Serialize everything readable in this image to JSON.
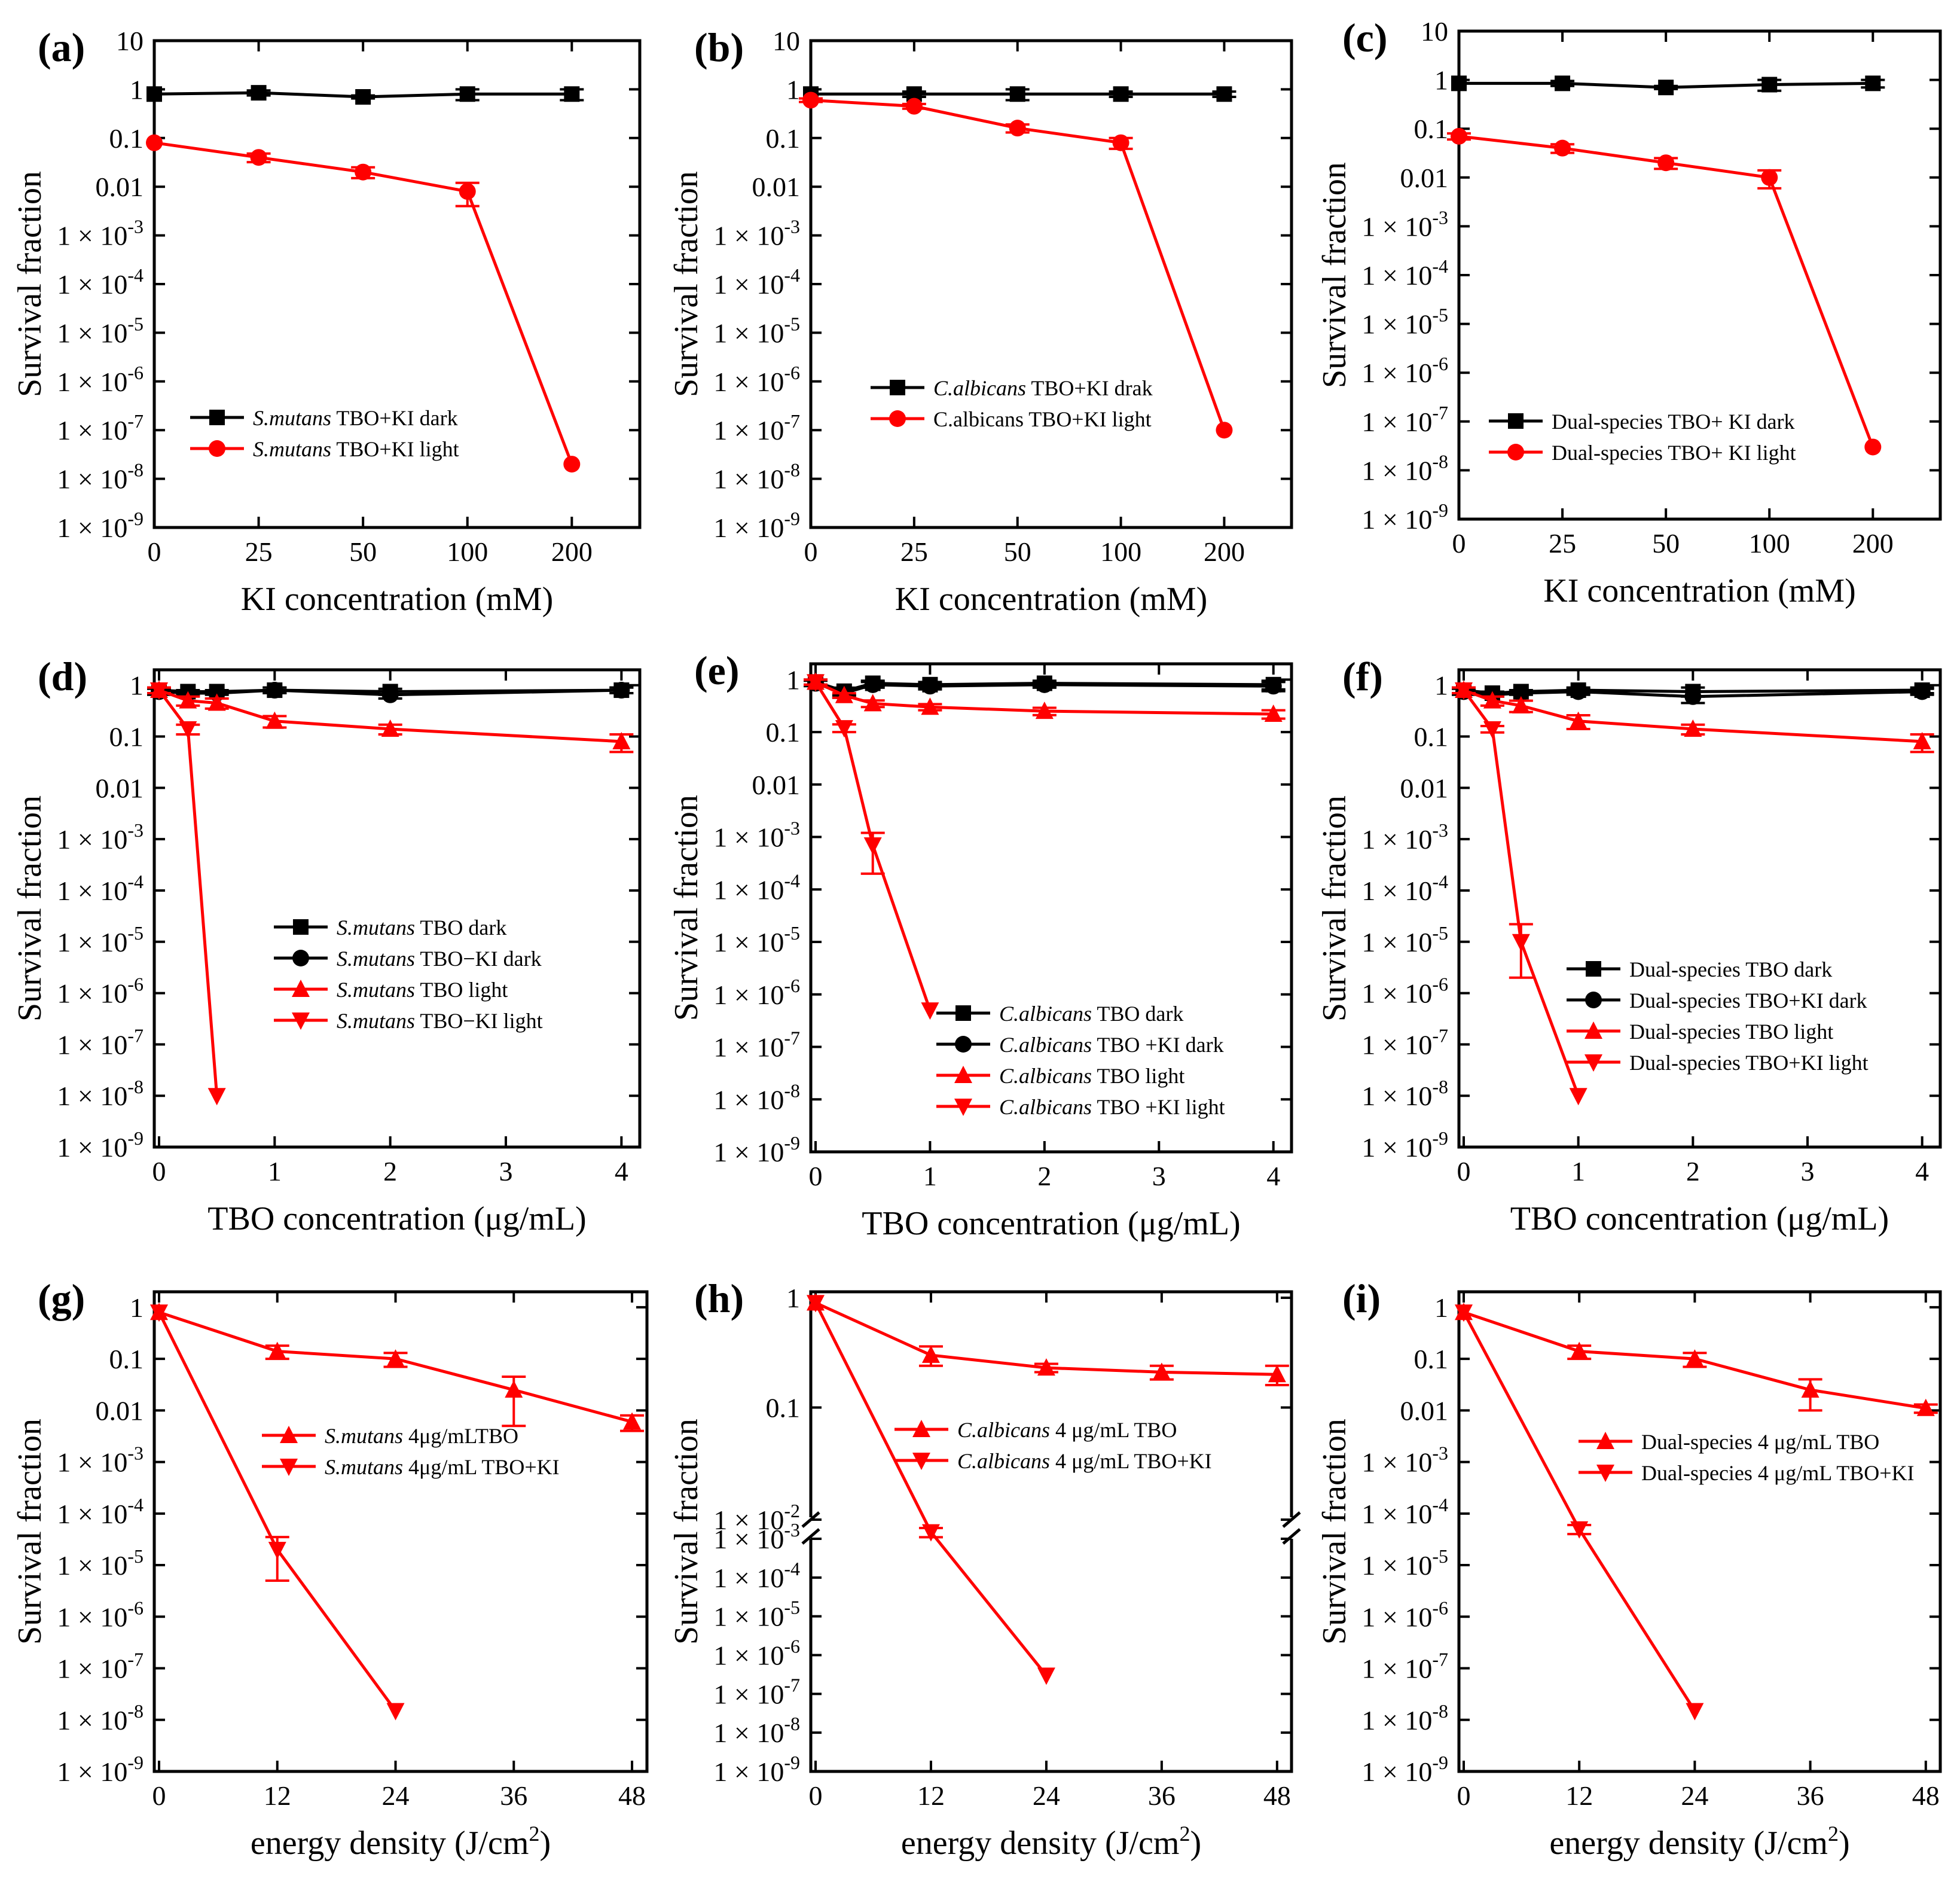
{
  "chart_data": [
    {
      "panel": "(a)",
      "type": "line",
      "xlabel": "KI concentration (mM)",
      "ylabel": "Survival fraction",
      "x_categories": [
        "0",
        "25",
        "50",
        "100",
        "200"
      ],
      "yscale": "log",
      "ylim": [
        1e-09,
        10
      ],
      "series": [
        {
          "name": "S.mutans TBO+KI dark",
          "name_italic": "S.mutans",
          "name_rest": " TBO+KI dark",
          "color": "#000000",
          "marker": "square",
          "x": [
            "0",
            "25",
            "50",
            "100",
            "200"
          ],
          "y": [
            0.8,
            0.85,
            0.7,
            0.8,
            0.8
          ],
          "err": [
            0,
            0.1,
            0.05,
            0.2,
            0.2
          ]
        },
        {
          "name": "S.mutans TBO+KI light",
          "name_italic": "S.mutans",
          "name_rest": " TBO+KI light",
          "color": "#ff0000",
          "marker": "circle",
          "x": [
            "0",
            "25",
            "50",
            "100",
            "200"
          ],
          "y": [
            0.08,
            0.04,
            0.02,
            0.008,
            2e-08
          ],
          "err": [
            0,
            0.008,
            0.005,
            0.004,
            0
          ]
        }
      ]
    },
    {
      "panel": "(b)",
      "type": "line",
      "xlabel": "KI concentration (mM)",
      "ylabel": "Survival fraction",
      "x_categories": [
        "0",
        "25",
        "50",
        "100",
        "200"
      ],
      "yscale": "log",
      "ylim": [
        1e-09,
        10
      ],
      "series": [
        {
          "name": "C.albicans TBO+KI drak",
          "name_italic": "C.albicans",
          "name_rest": " TBO+KI drak",
          "color": "#000000",
          "marker": "square",
          "x": [
            "0",
            "25",
            "50",
            "100",
            "200"
          ],
          "y": [
            0.8,
            0.8,
            0.8,
            0.8,
            0.8
          ],
          "err": [
            0,
            0.1,
            0.2,
            0.1,
            0.1
          ]
        },
        {
          "name": "C.albicans TBO+KI light",
          "name_italic": "",
          "name_rest": "C.albicans TBO+KI light",
          "color": "#ff0000",
          "marker": "circle",
          "x": [
            "0",
            "25",
            "50",
            "100",
            "200"
          ],
          "y": [
            0.6,
            0.45,
            0.16,
            0.08,
            1e-07
          ],
          "err": [
            0.05,
            0.05,
            0.03,
            0.02,
            0
          ]
        }
      ]
    },
    {
      "panel": "(c)",
      "type": "line",
      "xlabel": "KI concentration (mM)",
      "ylabel": "Survival fraction",
      "x_categories": [
        "0",
        "25",
        "50",
        "100",
        "200"
      ],
      "yscale": "log",
      "ylim": [
        1e-09,
        10
      ],
      "series": [
        {
          "name": "Dual-species TBO+ KI dark",
          "name_italic": "",
          "name_rest": "Dual-species TBO+ KI dark",
          "color": "#000000",
          "marker": "square",
          "x": [
            "0",
            "25",
            "50",
            "100",
            "200"
          ],
          "y": [
            0.85,
            0.85,
            0.7,
            0.8,
            0.85
          ],
          "err": [
            0,
            0.1,
            0.05,
            0.2,
            0.15
          ]
        },
        {
          "name": "Dual-species TBO+ KI light",
          "name_italic": "",
          "name_rest": "Dual-species TBO+ KI light",
          "color": "#ff0000",
          "marker": "circle",
          "x": [
            "0",
            "25",
            "50",
            "100",
            "200"
          ],
          "y": [
            0.07,
            0.04,
            0.02,
            0.01,
            3e-08
          ],
          "err": [
            0.01,
            0.008,
            0.005,
            0.004,
            0
          ]
        }
      ]
    },
    {
      "panel": "(d)",
      "type": "line",
      "xlabel": "TBO concentration (μg/mL)",
      "ylabel": "Survival fraction",
      "xlim": [
        0,
        4.2
      ],
      "xticks": [
        0,
        1,
        2,
        3,
        4
      ],
      "yscale": "log",
      "ylim": [
        1e-09,
        2
      ],
      "series": [
        {
          "name": "S.mutans TBO dark",
          "name_italic": "S.mutans",
          "name_rest": " TBO dark",
          "color": "#000000",
          "marker": "square",
          "x": [
            0,
            0.25,
            0.5,
            1,
            2,
            4
          ],
          "y": [
            0.8,
            0.75,
            0.75,
            0.8,
            0.75,
            0.8
          ],
          "err": [
            0.1,
            0.05,
            0.05,
            0.1,
            0.1,
            0.1
          ]
        },
        {
          "name": "S.mutans TBO−KI dark",
          "name_italic": "S.mutans",
          "name_rest": " TBO−KI dark",
          "color": "#000000",
          "marker": "circle",
          "x": [
            0,
            0.25,
            0.5,
            1,
            2,
            4
          ],
          "y": [
            0.75,
            0.7,
            0.7,
            0.8,
            0.65,
            0.8
          ],
          "err": [
            0.1,
            0.05,
            0.05,
            0.1,
            0.1,
            0.1
          ]
        },
        {
          "name": "S.mutans TBO light",
          "name_italic": "S.mutans",
          "name_rest": " TBO light",
          "color": "#ff0000",
          "marker": "triangle-up",
          "x": [
            0,
            0.25,
            0.5,
            1,
            2,
            4
          ],
          "y": [
            0.8,
            0.5,
            0.45,
            0.2,
            0.14,
            0.08
          ],
          "err": [
            0.1,
            0.1,
            0.1,
            0.05,
            0.03,
            0.03
          ]
        },
        {
          "name": "S.mutans TBO−KI light",
          "name_italic": "S.mutans",
          "name_rest": " TBO−KI light",
          "color": "#ff0000",
          "marker": "triangle-down",
          "x": [
            0,
            0.25,
            0.5
          ],
          "y": [
            0.8,
            0.14,
            1e-08
          ],
          "err": [
            0.1,
            0.03,
            0
          ]
        }
      ]
    },
    {
      "panel": "(e)",
      "type": "line",
      "xlabel": "TBO concentration (μg/mL)",
      "ylabel": "Survival fraction",
      "xlim": [
        0,
        4.2
      ],
      "xticks": [
        0,
        1,
        2,
        3,
        4
      ],
      "yscale": "log",
      "ylim": [
        1e-09,
        2
      ],
      "series": [
        {
          "name": "C.albicans TBO dark",
          "name_italic": "C.albicans",
          "name_rest": " TBO dark",
          "color": "#000000",
          "marker": "square",
          "x": [
            0,
            0.25,
            0.5,
            1,
            2,
            4
          ],
          "y": [
            0.9,
            0.6,
            0.85,
            0.8,
            0.85,
            0.8
          ],
          "err": [
            0.1,
            0.1,
            0.1,
            0.1,
            0.1,
            0.15
          ]
        },
        {
          "name": "C.albicans TBO +KI dark",
          "name_italic": "C.albicans",
          "name_rest": " TBO +KI dark",
          "color": "#000000",
          "marker": "circle",
          "x": [
            0,
            0.25,
            0.5,
            1,
            2,
            4
          ],
          "y": [
            0.85,
            0.55,
            0.8,
            0.75,
            0.8,
            0.75
          ],
          "err": [
            0.1,
            0.1,
            0.1,
            0.1,
            0.1,
            0.15
          ]
        },
        {
          "name": "C.albicans TBO light",
          "name_italic": "C.albicans",
          "name_rest": " TBO light",
          "color": "#ff0000",
          "marker": "triangle-up",
          "x": [
            0,
            0.25,
            0.5,
            1,
            2,
            4
          ],
          "y": [
            0.9,
            0.5,
            0.35,
            0.3,
            0.25,
            0.22
          ],
          "err": [
            0.1,
            0.05,
            0.05,
            0.04,
            0.04,
            0.04
          ]
        },
        {
          "name": "C.albicans TBO +KI light",
          "name_italic": "C.albicans",
          "name_rest": " TBO +KI light",
          "color": "#ff0000",
          "marker": "triangle-down",
          "x": [
            0,
            0.25,
            0.5,
            1
          ],
          "y": [
            0.9,
            0.12,
            0.0007,
            5e-07
          ],
          "err": [
            0.1,
            0.02,
            0.0005,
            0
          ]
        }
      ]
    },
    {
      "panel": "(f)",
      "type": "line",
      "xlabel": "TBO concentration (μg/mL)",
      "ylabel": "Survival fraction",
      "xlim": [
        0,
        4.2
      ],
      "xticks": [
        0,
        1,
        2,
        3,
        4
      ],
      "yscale": "log",
      "ylim": [
        1e-09,
        2
      ],
      "series": [
        {
          "name": "Dual-species TBO dark",
          "name_italic": "",
          "name_rest": "Dual-species TBO dark",
          "color": "#000000",
          "marker": "square",
          "x": [
            0,
            0.25,
            0.5,
            1,
            2,
            4
          ],
          "y": [
            0.8,
            0.7,
            0.75,
            0.8,
            0.75,
            0.8
          ],
          "err": [
            0.1,
            0.05,
            0.05,
            0.1,
            0.15,
            0.1
          ]
        },
        {
          "name": "Dual-species TBO+KI  dark",
          "name_italic": "",
          "name_rest": "Dual-species TBO+KI  dark",
          "color": "#000000",
          "marker": "circle",
          "x": [
            0,
            0.25,
            0.5,
            1,
            2,
            4
          ],
          "y": [
            0.75,
            0.65,
            0.7,
            0.75,
            0.6,
            0.75
          ],
          "err": [
            0.1,
            0.05,
            0.05,
            0.1,
            0.15,
            0.1
          ]
        },
        {
          "name": "Dual-species  TBO light",
          "name_italic": "",
          "name_rest": "Dual-species  TBO light",
          "color": "#ff0000",
          "marker": "triangle-up",
          "x": [
            0,
            0.25,
            0.5,
            1,
            2,
            4
          ],
          "y": [
            0.8,
            0.5,
            0.4,
            0.2,
            0.14,
            0.08
          ],
          "err": [
            0.1,
            0.1,
            0.1,
            0.06,
            0.03,
            0.03
          ]
        },
        {
          "name": "Dual-species TBO+KI light",
          "name_italic": "",
          "name_rest": "Dual-species TBO+KI light",
          "color": "#ff0000",
          "marker": "triangle-down",
          "x": [
            0,
            0.25,
            0.5,
            1
          ],
          "y": [
            0.8,
            0.14,
            1e-05,
            1e-08
          ],
          "err": [
            0.1,
            0.02,
            1.2e-05,
            0
          ]
        }
      ]
    },
    {
      "panel": "(g)",
      "type": "line",
      "xlabel": "energy density (J/cm²)",
      "ylabel": "Survival fraction",
      "xlim": [
        0,
        50
      ],
      "xticks": [
        0,
        12,
        24,
        36,
        48
      ],
      "yscale": "log",
      "ylim": [
        1e-09,
        2
      ],
      "series": [
        {
          "name": "S.mutans 4μg/mLTBO",
          "name_italic": "S.mutans",
          "name_rest": " 4μg/mLTBO",
          "color": "#ff0000",
          "marker": "triangle-up",
          "x": [
            0,
            12,
            24,
            36,
            48
          ],
          "y": [
            0.8,
            0.14,
            0.1,
            0.025,
            0.006
          ],
          "err": [
            0,
            0.04,
            0.03,
            0.02,
            0.002
          ]
        },
        {
          "name": "S.mutans 4μg/mL TBO+KI",
          "name_italic": "S.mutans",
          "name_rest": " 4μg/mL TBO+KI",
          "color": "#ff0000",
          "marker": "triangle-down",
          "x": [
            0,
            12,
            24
          ],
          "y": [
            0.8,
            2e-05,
            1.5e-08
          ],
          "err": [
            0,
            1.5e-05,
            0
          ]
        }
      ]
    },
    {
      "panel": "(h)",
      "type": "line",
      "xlabel": "energy density (J/cm²)",
      "ylabel": "Survival fraction",
      "xlim": [
        0,
        50
      ],
      "xticks": [
        0,
        12,
        24,
        36,
        48
      ],
      "yscale": "log-broken",
      "ylim": [
        1e-09,
        1
      ],
      "series": [
        {
          "name": "C.albicans 4 μg/mL TBO",
          "name_italic": "C.albicans",
          "name_rest": " 4 μg/mL TBO",
          "color": "#ff0000",
          "marker": "triangle-up",
          "x": [
            0,
            12,
            24,
            36,
            48
          ],
          "y": [
            0.9,
            0.3,
            0.23,
            0.21,
            0.2
          ],
          "err": [
            0,
            0.06,
            0.02,
            0.03,
            0.04
          ]
        },
        {
          "name": "C.albicans 4 μg/mL TBO+KI",
          "name_italic": "C.albicans",
          "name_rest": " 4 μg/mL TBO+KI",
          "color": "#ff0000",
          "marker": "triangle-down",
          "x": [
            0,
            12,
            24
          ],
          "y": [
            0.9,
            0.0015,
            3e-07
          ],
          "err": [
            0,
            0.0004,
            0
          ]
        }
      ]
    },
    {
      "panel": "(i)",
      "type": "line",
      "xlabel": "energy density (J/cm²)",
      "ylabel": "Survival fraction",
      "xlim": [
        0,
        50
      ],
      "xticks": [
        0,
        12,
        24,
        36,
        48
      ],
      "yscale": "log",
      "ylim": [
        1e-09,
        2
      ],
      "series": [
        {
          "name": "Dual-species 4 μg/mL TBO",
          "name_italic": "",
          "name_rest": "Dual-species 4 μg/mL TBO",
          "color": "#ff0000",
          "marker": "triangle-up",
          "x": [
            0,
            12,
            24,
            36,
            48
          ],
          "y": [
            0.8,
            0.14,
            0.1,
            0.025,
            0.011
          ],
          "err": [
            0,
            0.04,
            0.03,
            0.015,
            0.002
          ]
        },
        {
          "name": "Dual-species 4 μg/mL TBO+KI",
          "name_italic": "",
          "name_rest": "Dual-species 4 μg/mL TBO+KI",
          "color": "#ff0000",
          "marker": "triangle-down",
          "x": [
            0,
            12,
            24
          ],
          "y": [
            0.8,
            5e-05,
            1.5e-08
          ],
          "err": [
            0,
            1e-05,
            0
          ]
        }
      ]
    }
  ],
  "ytick_labels": {
    "upper": [
      "10",
      "1",
      "0.1",
      "0.01"
    ],
    "upper_no_ten": [
      "1",
      "0.1",
      "0.01"
    ],
    "lower_prefix": "1 × 10",
    "lower_exponents": [
      "-3",
      "-4",
      "-5",
      "-6",
      "-7",
      "-8",
      "-9"
    ],
    "h_upper": [
      "1",
      "0.1"
    ],
    "h_break": [
      "1 × 10",
      "-2"
    ]
  }
}
